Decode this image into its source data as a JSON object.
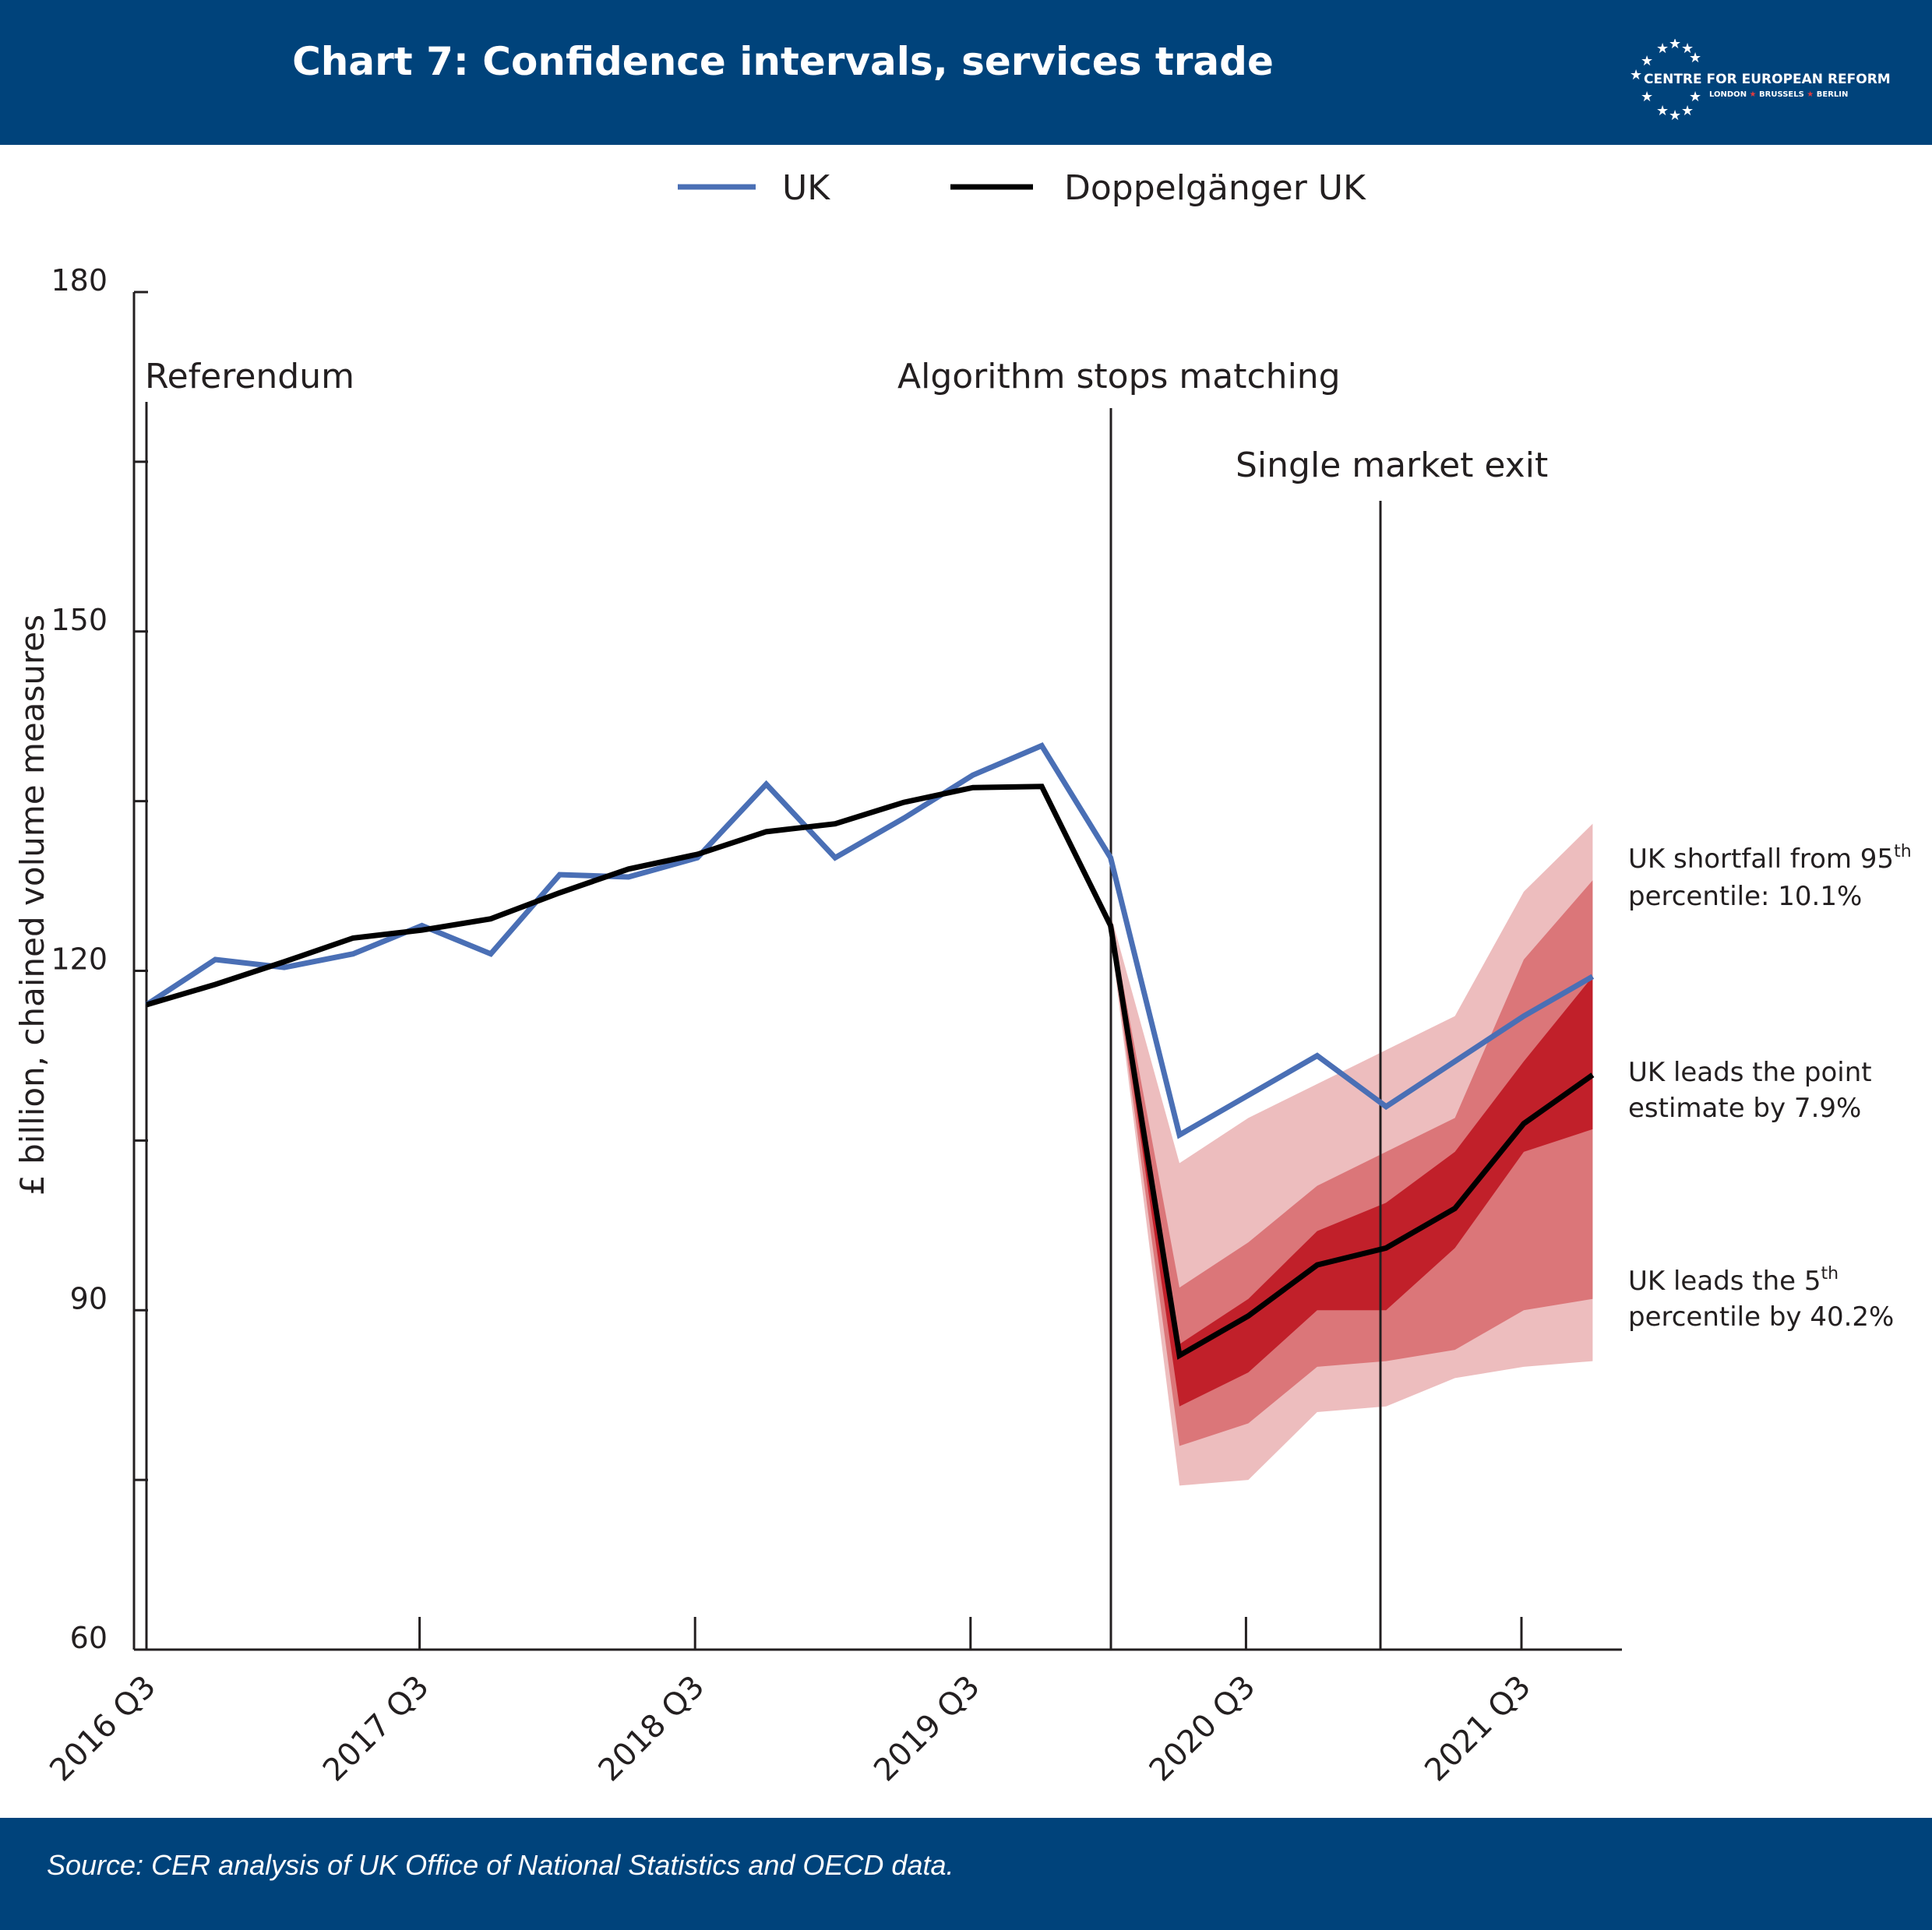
{
  "header": {
    "title": "Chart 7: Confidence intervals, services trade",
    "logo_text": "CENTRE FOR EUROPEAN REFORM",
    "logo_cities": [
      "LONDON",
      "BRUSSELS",
      "BERLIN"
    ]
  },
  "footer": {
    "source": "Source: CER analysis of UK Office of National Statistics and OECD data."
  },
  "colors": {
    "banner": "#00437b",
    "uk_line": "#4a6fb5",
    "doppel_line": "#000000",
    "band_outer": "#edbdbe",
    "band_middle": "#db7679",
    "band_inner": "#c1202a"
  },
  "chart_data": {
    "type": "line",
    "title": "Chart 7: Confidence intervals, services trade",
    "xlabel": "",
    "ylabel": "£ billion, chained volume measures",
    "ylim": [
      60,
      180
    ],
    "yticks": [
      60,
      90,
      120,
      150,
      180
    ],
    "x_tick_labels": [
      "2016 Q3",
      "2017 Q3",
      "2018 Q3",
      "2019 Q3",
      "2020 Q3",
      "2021 Q3"
    ],
    "x": [
      "2016 Q3",
      "2016 Q4",
      "2017 Q1",
      "2017 Q2",
      "2017 Q3",
      "2017 Q4",
      "2018 Q1",
      "2018 Q2",
      "2018 Q3",
      "2018 Q4",
      "2019 Q1",
      "2019 Q2",
      "2019 Q3",
      "2019 Q4",
      "2020 Q1",
      "2020 Q2",
      "2020 Q3",
      "2020 Q4",
      "2021 Q1",
      "2021 Q2",
      "2021 Q3",
      "2021 Q4"
    ],
    "legend_position": "top-center",
    "series": [
      {
        "name": "UK",
        "values": [
          117,
          121,
          120.3,
          121.5,
          124,
          121.5,
          128.5,
          128.3,
          130,
          136.5,
          130,
          133.5,
          137.3,
          139.9,
          130,
          105.5,
          109,
          112.5,
          108,
          112,
          116,
          119.5
        ]
      },
      {
        "name": "Doppelgänger UK",
        "values": [
          117,
          118.8,
          120.8,
          122.9,
          123.6,
          124.6,
          126.9,
          129,
          130.3,
          132.3,
          133,
          134.9,
          136.2,
          136.3,
          124,
          86,
          89.5,
          94,
          95.5,
          99,
          106.5,
          110.8
        ]
      }
    ],
    "bands": {
      "x": [
        "2020 Q1",
        "2020 Q2",
        "2020 Q3",
        "2020 Q4",
        "2021 Q1",
        "2021 Q2",
        "2021 Q3",
        "2021 Q4"
      ],
      "outer": {
        "low": [
          123,
          74.5,
          75,
          81,
          81.5,
          84,
          85,
          85.5
        ],
        "high": [
          125,
          103,
          107,
          110,
          113,
          116,
          127,
          133
        ]
      },
      "middle": {
        "low": [
          123.3,
          78,
          80,
          85,
          85.5,
          86.5,
          90,
          91
        ],
        "high": [
          124.7,
          92,
          96,
          101,
          104,
          107,
          121,
          128
        ]
      },
      "inner": {
        "low": [
          123.6,
          81.5,
          84.5,
          90,
          90,
          95.5,
          104,
          106
        ],
        "high": [
          124.4,
          87,
          91,
          97,
          99.5,
          104,
          112,
          119.5
        ]
      }
    },
    "events": [
      {
        "label": "Referendum",
        "x": "2016 Q3"
      },
      {
        "label": "Algorithm stops matching",
        "x": "2020 Q1"
      },
      {
        "label": "Single market exit",
        "x": "2021 Q1"
      }
    ],
    "annotations": [
      {
        "text": "UK shortfall from 95",
        "sup": "th",
        "text2": "percentile: 10.1%"
      },
      {
        "text": "UK leads the point",
        "sup": "",
        "text2": "estimate by 7.9%"
      },
      {
        "text": "UK leads the 5",
        "sup": "th",
        "text2": "percentile by 40.2%"
      }
    ]
  }
}
